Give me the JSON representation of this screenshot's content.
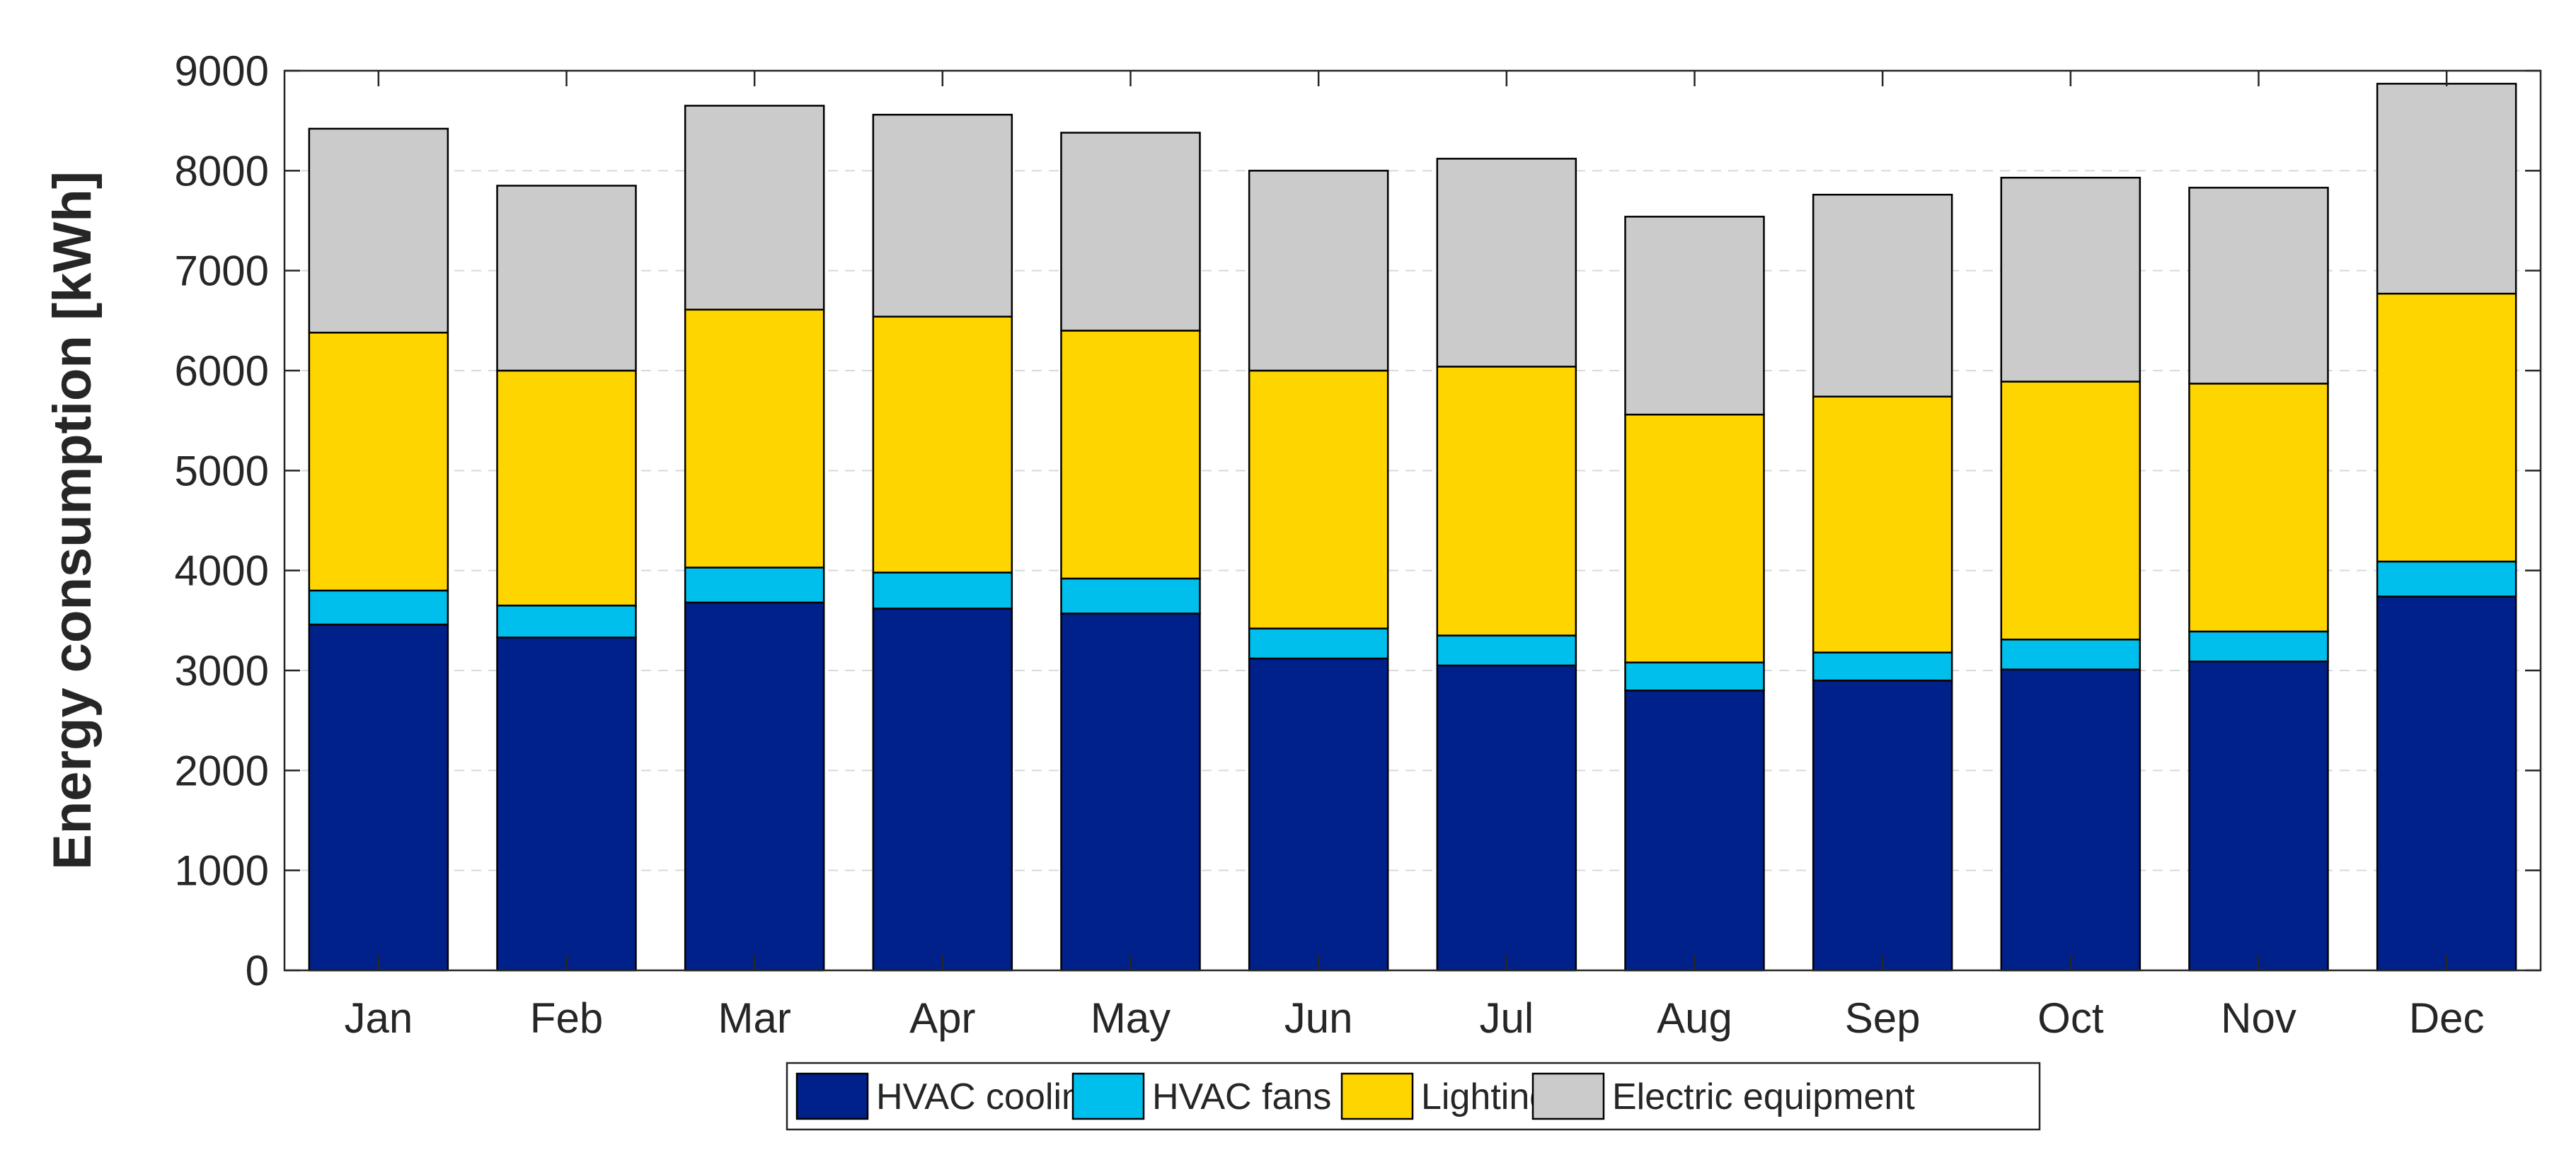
{
  "chart_data": {
    "type": "bar",
    "stacked": true,
    "title": "",
    "xlabel": "",
    "ylabel": "Energy consumption [kWh]",
    "ylim": [
      0,
      9000
    ],
    "yticks": [
      0,
      1000,
      2000,
      3000,
      4000,
      5000,
      6000,
      7000,
      8000,
      9000
    ],
    "grid": "y-dashed",
    "legend_position": "bottom-center",
    "categories": [
      "Jan",
      "Feb",
      "Mar",
      "Apr",
      "May",
      "Jun",
      "Jul",
      "Aug",
      "Sep",
      "Oct",
      "Nov",
      "Dec"
    ],
    "series": [
      {
        "name": "HVAC cooling",
        "color": "#00218a",
        "values": [
          3460,
          3330,
          3680,
          3620,
          3570,
          3120,
          3050,
          2800,
          2900,
          3010,
          3090,
          3740
        ]
      },
      {
        "name": "HVAC fans",
        "color": "#00bfec",
        "values": [
          340,
          320,
          350,
          360,
          350,
          300,
          300,
          280,
          280,
          300,
          300,
          350
        ]
      },
      {
        "name": "Lighting",
        "color": "#ffd500",
        "values": [
          2580,
          2350,
          2580,
          2560,
          2480,
          2580,
          2690,
          2480,
          2560,
          2580,
          2480,
          2680
        ]
      },
      {
        "name": "Electric equipment",
        "color": "#cbcbcb",
        "values": [
          2040,
          1850,
          2040,
          2020,
          1980,
          2000,
          2080,
          1980,
          2020,
          2040,
          1960,
          2100
        ]
      }
    ]
  }
}
